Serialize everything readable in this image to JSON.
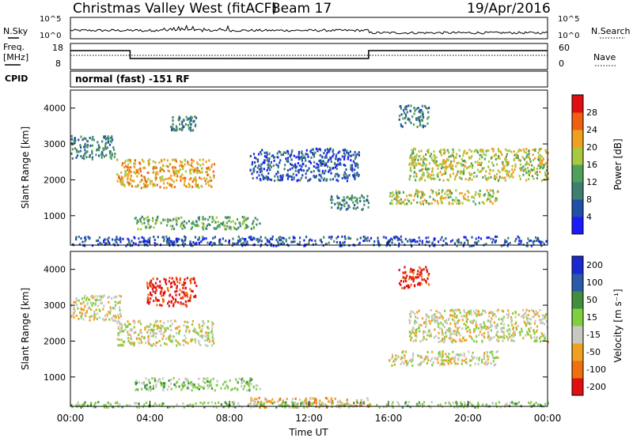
{
  "header": {
    "title": "Christmas Valley West (fitACF)",
    "beam": "Beam 17",
    "date": "19/Apr/2016"
  },
  "top_panels": {
    "nsky_label": "N.Sky",
    "nsearch_label": "N.Search",
    "counts_tick_high": "10^5",
    "counts_tick_low": "10^0",
    "freq_label_1": "Freq.",
    "freq_label_2": "[MHz]",
    "freq_tick_high": "18",
    "freq_tick_low": "8",
    "nave_label": "Nave",
    "nave_tick_high": "60",
    "nave_tick_low": "0",
    "cpid_label": "CPID",
    "cpid_text": "normal (fast) -151 RF",
    "freq_series": [
      {
        "hour": 0,
        "value": "high"
      },
      {
        "hour": 3,
        "value": "low"
      },
      {
        "hour": 15,
        "value": "high"
      },
      {
        "hour": 24,
        "value": "high"
      }
    ]
  },
  "x_axis": {
    "label": "Time UT",
    "ticks": [
      "00:00",
      "04:00",
      "08:00",
      "12:00",
      "16:00",
      "20:00",
      "00:00"
    ],
    "range_hours": [
      0,
      24
    ]
  },
  "chart_data": [
    {
      "type": "heatmap",
      "ylabel": "Slant Range [km]",
      "xlabel": "",
      "yticks": [
        "1000",
        "2000",
        "3000",
        "4000"
      ],
      "ylim": [
        180,
        4500
      ],
      "colorbar": {
        "label": "Power [dB]",
        "ticks": [
          "4",
          "8",
          "12",
          "16",
          "20",
          "24",
          "28"
        ],
        "colors": [
          "#1a1aff",
          "#1f4fa8",
          "#3f7f6f",
          "#4fa05a",
          "#a8c83f",
          "#f0a020",
          "#f06010",
          "#e01010"
        ]
      },
      "regions": [
        {
          "t0": 0.0,
          "t1": 2.2,
          "r0": 2600,
          "r1": 3250,
          "level": 2
        },
        {
          "t0": 2.3,
          "t1": 7.2,
          "r0": 1800,
          "r1": 2600,
          "level": 5
        },
        {
          "t0": 3.2,
          "t1": 9.5,
          "r0": 650,
          "r1": 1000,
          "level": 3
        },
        {
          "t0": 5.0,
          "t1": 6.3,
          "r0": 3400,
          "r1": 3800,
          "level": 2
        },
        {
          "t0": 9.0,
          "t1": 14.5,
          "r0": 2000,
          "r1": 2900,
          "level": 1
        },
        {
          "t0": 13.0,
          "t1": 15.0,
          "r0": 1200,
          "r1": 1600,
          "level": 2
        },
        {
          "t0": 16.5,
          "t1": 18.0,
          "r0": 3500,
          "r1": 4100,
          "level": 2
        },
        {
          "t0": 17.0,
          "t1": 24.0,
          "r0": 2000,
          "r1": 2900,
          "level": 4
        },
        {
          "t0": 16.0,
          "t1": 21.5,
          "r0": 1350,
          "r1": 1750,
          "level": 4
        },
        {
          "t0": 0.0,
          "t1": 24.0,
          "r0": 180,
          "r1": 450,
          "level": 1
        }
      ]
    },
    {
      "type": "heatmap",
      "ylabel": "Slant Range [km]",
      "xlabel": "",
      "yticks": [
        "1000",
        "2000",
        "3000",
        "4000"
      ],
      "ylim": [
        180,
        4500
      ],
      "colorbar": {
        "label": "Velocity [m s⁻¹]",
        "ticks": [
          "200",
          "100",
          "50",
          "15",
          "-15",
          "-50",
          "-100",
          "-200"
        ],
        "colors": [
          "#1a2ad0",
          "#2a5aa8",
          "#3f8f3f",
          "#7fd040",
          "#c8c8c0",
          "#f0a020",
          "#f07010",
          "#e01010"
        ]
      },
      "regions": [
        {
          "t0": 0.0,
          "t1": 2.5,
          "r0": 2600,
          "r1": 3300,
          "level": 4
        },
        {
          "t0": 2.3,
          "t1": 7.2,
          "r0": 1900,
          "r1": 2600,
          "level": 4
        },
        {
          "t0": 3.8,
          "t1": 6.3,
          "r0": 3000,
          "r1": 3800,
          "level": 7
        },
        {
          "t0": 3.2,
          "t1": 9.5,
          "r0": 650,
          "r1": 1000,
          "level": 3
        },
        {
          "t0": 16.5,
          "t1": 18.0,
          "r0": 3500,
          "r1": 4100,
          "level": 7
        },
        {
          "t0": 17.0,
          "t1": 24.0,
          "r0": 2000,
          "r1": 2900,
          "level": 4
        },
        {
          "t0": 16.0,
          "t1": 21.5,
          "r0": 1350,
          "r1": 1750,
          "level": 4
        },
        {
          "t0": 9.0,
          "t1": 15.0,
          "r0": 180,
          "r1": 450,
          "level": 5
        },
        {
          "t0": 0.0,
          "t1": 24.0,
          "r0": 180,
          "r1": 330,
          "level": 3
        }
      ]
    }
  ]
}
